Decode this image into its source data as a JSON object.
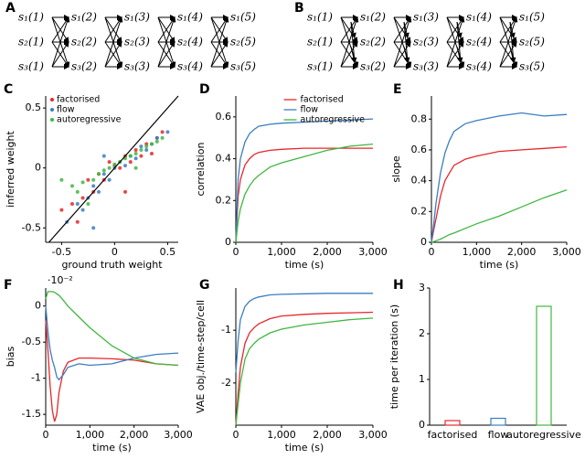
{
  "diagrams": [
    {
      "panel": "A",
      "columns": [
        [
          "s₁(1)",
          "s₂(1)",
          "s₃(1)"
        ],
        [
          "s₁(2)",
          "s₂(2)",
          "s₃(2)"
        ],
        [
          "s₁(3)",
          "s₂(3)",
          "s₃(3)"
        ],
        [
          "s₁(4)",
          "s₂(4)",
          "s₃(4)"
        ],
        [
          "s₁(5)",
          "s₂(5)",
          "s₃(5)"
        ]
      ]
    },
    {
      "panel": "B",
      "columns": [
        [
          "s₁(1)",
          "s₂(1)",
          "s₃(1)"
        ],
        [
          "s₁(2)",
          "s₂(2)",
          "s₃(2)"
        ],
        [
          "s₁(3)",
          "s₂(3)",
          "s₃(3)"
        ],
        [
          "s₁(4)",
          "s₂(4)",
          "s₃(4)"
        ],
        [
          "s₁(5)",
          "s₂(5)",
          "s₃(5)"
        ]
      ]
    }
  ],
  "chart_data": [
    {
      "type": "scatter",
      "panel": "C",
      "xlabel": "ground truth weight",
      "ylabel": "inferred weight",
      "xlim": [
        -0.65,
        0.6
      ],
      "ylim": [
        -0.62,
        0.6
      ],
      "xticks": [
        -0.5,
        0,
        0.5
      ],
      "yticks": [
        -0.5,
        0,
        0.5
      ],
      "legend": "upper left",
      "series": [
        {
          "name": "factorised",
          "color": "#e8262b",
          "x": [
            -0.5,
            -0.4,
            -0.3,
            -0.25,
            -0.2,
            -0.15,
            -0.1,
            -0.05,
            0,
            0.05,
            0.1,
            0.15,
            0.2,
            0.25,
            0.3,
            0.35,
            0.4,
            0.45,
            -0.35,
            0.1
          ],
          "y": [
            -0.35,
            -0.3,
            -0.25,
            -0.1,
            -0.2,
            -0.05,
            -0.1,
            0.05,
            0.02,
            0,
            0.1,
            0.05,
            0.15,
            0.1,
            0.2,
            0.12,
            0.25,
            0.3,
            -0.45,
            -0.2
          ]
        },
        {
          "name": "flow",
          "color": "#3a7ec1",
          "x": [
            -0.45,
            -0.35,
            -0.3,
            -0.25,
            -0.2,
            -0.15,
            -0.1,
            -0.05,
            0,
            0.05,
            0.1,
            0.15,
            0.2,
            0.25,
            0.3,
            0.4,
            0.5,
            -0.2,
            0.35,
            -0.1
          ],
          "y": [
            -0.45,
            -0.3,
            -0.35,
            -0.25,
            -0.15,
            -0.2,
            -0.05,
            -0.1,
            0,
            0.05,
            0.02,
            0.1,
            0.08,
            0.18,
            0.15,
            0.25,
            0.3,
            -0.5,
            0.2,
            0.1
          ]
        },
        {
          "name": "autoregressive",
          "color": "#3fb73f",
          "x": [
            -0.5,
            -0.4,
            -0.35,
            -0.3,
            -0.2,
            -0.15,
            -0.1,
            -0.05,
            0,
            0.05,
            0.1,
            0.15,
            0.2,
            0.25,
            0.3,
            0.35,
            0.4,
            0.45,
            -0.25,
            0.2
          ],
          "y": [
            -0.1,
            -0.15,
            -0.2,
            -0.12,
            -0.1,
            -0.05,
            -0.02,
            0,
            0.03,
            0.05,
            0.08,
            0.1,
            0.12,
            0.15,
            0.18,
            0.2,
            0.22,
            0.25,
            -0.3,
            0
          ]
        }
      ]
    },
    {
      "type": "line",
      "panel": "D",
      "xlabel": "time (s)",
      "ylabel": "correlation",
      "xlim": [
        0,
        3000
      ],
      "ylim": [
        0,
        0.7
      ],
      "xticks": [
        0,
        {
          "value": 1000,
          "label": "1,000"
        },
        {
          "value": 2000,
          "label": "2,000"
        },
        {
          "value": 3000,
          "label": "3,000"
        }
      ],
      "yticks": [
        0,
        0.2,
        0.4,
        0.6
      ],
      "legend": "upper right",
      "x": [
        0,
        50,
        100,
        200,
        300,
        400,
        500,
        750,
        1000,
        1500,
        2000,
        2500,
        3000
      ],
      "series": [
        {
          "name": "factorised",
          "color": "#e8262b",
          "values": [
            0,
            0.22,
            0.3,
            0.37,
            0.4,
            0.42,
            0.43,
            0.44,
            0.445,
            0.45,
            0.45,
            0.45,
            0.45
          ]
        },
        {
          "name": "flow",
          "color": "#3a7ec1",
          "values": [
            0,
            0.3,
            0.4,
            0.48,
            0.52,
            0.54,
            0.555,
            0.565,
            0.57,
            0.575,
            0.58,
            0.585,
            0.59
          ]
        },
        {
          "name": "autoregressive",
          "color": "#3fb73f",
          "values": [
            0,
            0.1,
            0.16,
            0.23,
            0.27,
            0.3,
            0.32,
            0.36,
            0.38,
            0.41,
            0.44,
            0.46,
            0.47
          ]
        }
      ]
    },
    {
      "type": "line",
      "panel": "E",
      "xlabel": "time (s)",
      "ylabel": "slope",
      "xlim": [
        0,
        3000
      ],
      "ylim": [
        0,
        0.95
      ],
      "xticks": [
        0,
        {
          "value": 1000,
          "label": "1,000"
        },
        {
          "value": 2000,
          "label": "2,000"
        },
        {
          "value": 3000,
          "label": "3,000"
        }
      ],
      "yticks": [
        0,
        0.2,
        0.4,
        0.6,
        0.8
      ],
      "x": [
        0,
        50,
        100,
        200,
        300,
        400,
        500,
        750,
        1000,
        1500,
        2000,
        2500,
        3000
      ],
      "series": [
        {
          "color": "#e8262b",
          "values": [
            0,
            0.08,
            0.15,
            0.3,
            0.4,
            0.45,
            0.5,
            0.54,
            0.56,
            0.59,
            0.6,
            0.61,
            0.62
          ]
        },
        {
          "color": "#3a7ec1",
          "values": [
            0,
            0.12,
            0.25,
            0.45,
            0.58,
            0.66,
            0.72,
            0.77,
            0.79,
            0.82,
            0.84,
            0.82,
            0.83
          ]
        },
        {
          "color": "#3fb73f",
          "values": [
            0,
            0.005,
            0.01,
            0.02,
            0.035,
            0.05,
            0.06,
            0.09,
            0.12,
            0.17,
            0.23,
            0.29,
            0.34
          ]
        }
      ]
    },
    {
      "type": "line",
      "panel": "F",
      "xlabel": "time (s)",
      "ylabel": "bias",
      "multiplier": "·10⁻²",
      "xlim": [
        0,
        3000
      ],
      "ylim": [
        -1.65,
        0.25
      ],
      "xticks": [
        0,
        {
          "value": 1000,
          "label": "1,000"
        },
        {
          "value": 2000,
          "label": "2,000"
        },
        {
          "value": 3000,
          "label": "3,000"
        }
      ],
      "yticks": [
        0,
        -0.5,
        -1,
        -1.5
      ],
      "x": [
        0,
        50,
        100,
        150,
        200,
        250,
        300,
        400,
        500,
        750,
        1000,
        1500,
        2000,
        2500,
        3000
      ],
      "series": [
        {
          "color": "#e8262b",
          "values": [
            -0.2,
            -0.6,
            -1.1,
            -1.45,
            -1.6,
            -1.5,
            -1.2,
            -0.9,
            -0.78,
            -0.72,
            -0.72,
            -0.73,
            -0.75,
            -0.8,
            -0.82
          ]
        },
        {
          "color": "#3a7ec1",
          "values": [
            0,
            -0.35,
            -0.6,
            -0.75,
            -0.85,
            -0.98,
            -1.02,
            -0.95,
            -0.85,
            -0.8,
            -0.82,
            -0.8,
            -0.72,
            -0.67,
            -0.65
          ]
        },
        {
          "color": "#3fb73f",
          "values": [
            0.1,
            0.2,
            0.2,
            0.2,
            0.19,
            0.17,
            0.15,
            0.08,
            0,
            -0.15,
            -0.3,
            -0.55,
            -0.72,
            -0.8,
            -0.82
          ]
        }
      ]
    },
    {
      "type": "line",
      "panel": "G",
      "xlabel": "time (s)",
      "ylabel": "VAE obj./time-step/cell",
      "xlim": [
        0,
        3000
      ],
      "ylim": [
        -2.8,
        -0.2
      ],
      "xticks": [
        0,
        {
          "value": 1000,
          "label": "1,000"
        },
        {
          "value": 2000,
          "label": "2,000"
        },
        {
          "value": 3000,
          "label": "3,000"
        }
      ],
      "yticks": [
        -2,
        -1
      ],
      "x": [
        0,
        50,
        100,
        200,
        300,
        400,
        500,
        750,
        1000,
        1500,
        2000,
        2500,
        3000
      ],
      "series": [
        {
          "color": "#e8262b",
          "values": [
            -2.8,
            -2.2,
            -1.7,
            -1.25,
            -1.05,
            -0.95,
            -0.88,
            -0.78,
            -0.73,
            -0.7,
            -0.68,
            -0.67,
            -0.66
          ]
        },
        {
          "color": "#3a7ec1",
          "values": [
            -1.8,
            -1.2,
            -0.8,
            -0.55,
            -0.45,
            -0.4,
            -0.37,
            -0.33,
            -0.32,
            -0.31,
            -0.3,
            -0.3,
            -0.3
          ]
        },
        {
          "color": "#3fb73f",
          "values": [
            -2.8,
            -2.4,
            -2,
            -1.55,
            -1.35,
            -1.25,
            -1.17,
            -1.05,
            -0.98,
            -0.9,
            -0.85,
            -0.8,
            -0.77
          ]
        }
      ]
    },
    {
      "type": "bar",
      "panel": "H",
      "ylabel": "time per iteration (s)",
      "ylim": [
        0,
        3
      ],
      "yticks": [
        0,
        1,
        2,
        3
      ],
      "categories": [
        "factorised",
        "flow",
        "autoregressive"
      ],
      "values": [
        0.1,
        0.15,
        2.6
      ],
      "colors": [
        "#e8262b",
        "#3a7ec1",
        "#3fb73f"
      ]
    }
  ]
}
